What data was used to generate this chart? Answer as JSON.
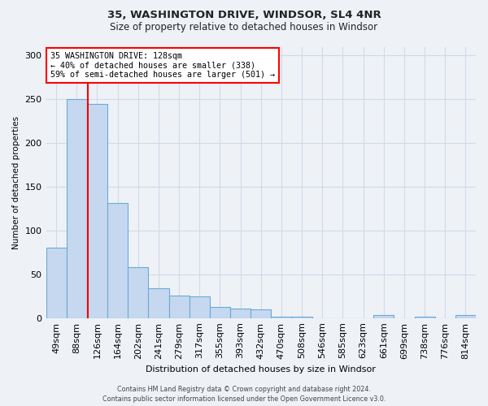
{
  "title1": "35, WASHINGTON DRIVE, WINDSOR, SL4 4NR",
  "title2": "Size of property relative to detached houses in Windsor",
  "xlabel": "Distribution of detached houses by size in Windsor",
  "ylabel": "Number of detached properties",
  "categories": [
    "49sqm",
    "88sqm",
    "126sqm",
    "164sqm",
    "202sqm",
    "241sqm",
    "279sqm",
    "317sqm",
    "355sqm",
    "393sqm",
    "432sqm",
    "470sqm",
    "508sqm",
    "546sqm",
    "585sqm",
    "623sqm",
    "661sqm",
    "699sqm",
    "738sqm",
    "776sqm",
    "814sqm"
  ],
  "values": [
    80,
    250,
    245,
    131,
    58,
    34,
    26,
    25,
    13,
    11,
    10,
    2,
    2,
    0,
    0,
    0,
    3,
    0,
    2,
    0,
    3
  ],
  "bar_color": "#c5d8f0",
  "bar_edgecolor": "#6aaad4",
  "annotation_line1": "35 WASHINGTON DRIVE: 128sqm",
  "annotation_line2": "← 40% of detached houses are smaller (338)",
  "annotation_line3": "59% of semi-detached houses are larger (501) →",
  "annotation_box_color": "white",
  "annotation_box_edgecolor": "red",
  "vline_color": "red",
  "vline_pos": 2.05,
  "footer_text": "Contains HM Land Registry data © Crown copyright and database right 2024.\nContains public sector information licensed under the Open Government Licence v3.0.",
  "ylim": [
    0,
    310
  ],
  "yticks": [
    0,
    50,
    100,
    150,
    200,
    250,
    300
  ],
  "background_color": "#eef2f7",
  "grid_color": "#d0dae8"
}
